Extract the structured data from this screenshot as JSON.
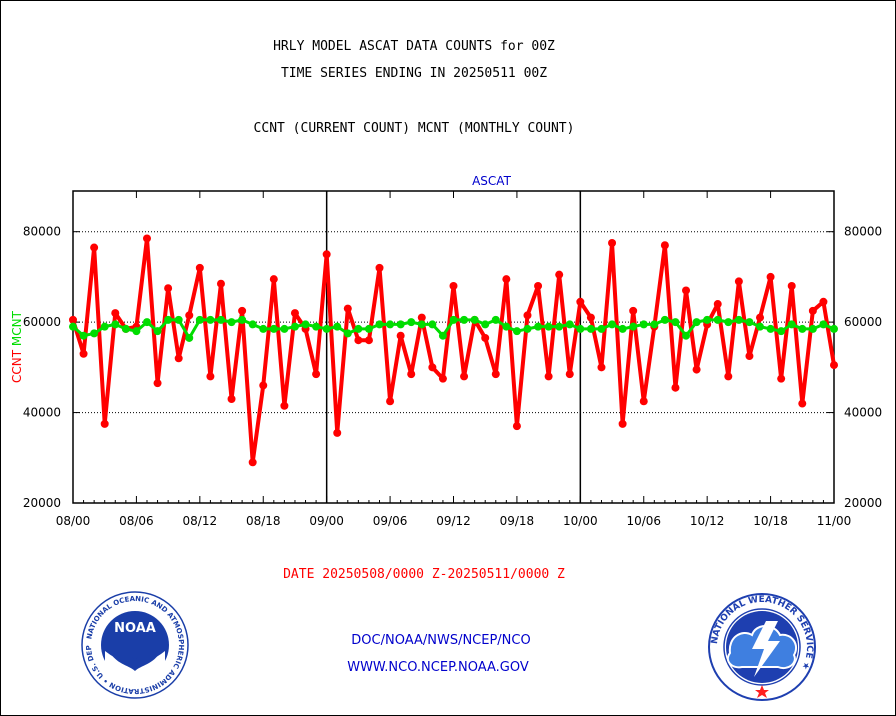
{
  "colors": {
    "ccnt": "#ff0000",
    "mcnt": "#00dd00",
    "subtitle_blue": "#0000cc",
    "credit_blue": "#0000cc",
    "date_red": "#ff0000",
    "noaa_blue": "#1a3ea8",
    "nws_blue": "#1e3fb0"
  },
  "header": {
    "title_line1": "HRLY MODEL ASCAT DATA COUNTS for 00Z",
    "title_line2": "TIME SERIES ENDING IN 20250511 00Z",
    "subtitle": "CCNT (CURRENT COUNT) MCNT (MONTHLY COUNT)"
  },
  "footer": {
    "date_range": "DATE 20250508/0000 Z-20250511/0000 Z",
    "credit_line1": "DOC/NOAA/NWS/NCEP/NCO",
    "credit_line2": "WWW.NCO.NCEP.NOAA.GOV"
  },
  "logos": {
    "noaa_label": "NOAA",
    "noaa_ring_text": "NATIONAL OCEANIC AND ATMOSPHERIC ADMINISTRATION",
    "noaa_bottom_text": "U.S. DEPARTMENT OF COMMERCE",
    "nws_ring_text": "NATIONAL WEATHER SERVICE"
  },
  "chart_data": {
    "type": "line",
    "title": "ASCAT",
    "ylabel_left_red": "CCNT",
    "ylabel_left_green": "MCNT",
    "x_tick_labels": [
      "08/00",
      "08/06",
      "08/12",
      "08/18",
      "09/00",
      "09/06",
      "09/12",
      "09/18",
      "10/00",
      "10/06",
      "10/12",
      "10/18",
      "11/00"
    ],
    "y_tick_labels": [
      "20000",
      "40000",
      "60000",
      "80000"
    ],
    "y_ticks": [
      20000,
      40000,
      60000,
      80000
    ],
    "ylim": [
      20000,
      89000
    ],
    "xlim": [
      0,
      72
    ],
    "day_dividers": [
      24,
      48
    ],
    "grid": "horizontal dotted at 40000, 60000, 80000",
    "series": [
      {
        "name": "CCNT",
        "values": [
          60500,
          53000,
          76500,
          37500,
          62000,
          58500,
          59000,
          78500,
          46500,
          67500,
          52000,
          61500,
          72000,
          48000,
          68500,
          43000,
          62500,
          29000,
          46000,
          69500,
          41500,
          62000,
          58500,
          48500,
          75000,
          35500,
          63000,
          56000,
          56000,
          72000,
          42500,
          57000,
          48500,
          61000,
          50000,
          47500,
          68000,
          48000,
          60500,
          56500,
          48500,
          69500,
          37000,
          61500,
          68000,
          48000,
          70500,
          48500,
          64500,
          61000,
          50000,
          77500,
          37500,
          62500,
          42500,
          59000,
          77000,
          45500,
          67000,
          49500,
          59500,
          64000,
          48000,
          69000,
          52500,
          61000,
          70000,
          47500,
          68000,
          42000,
          62500,
          64500,
          50500
        ]
      },
      {
        "name": "MCNT",
        "values": [
          59000,
          57000,
          57500,
          59000,
          59500,
          58500,
          58000,
          60000,
          58000,
          60500,
          60500,
          56500,
          60500,
          60500,
          60500,
          60000,
          60500,
          59500,
          58500,
          58500,
          58500,
          59000,
          59500,
          59000,
          58500,
          59000,
          57500,
          58500,
          58500,
          59500,
          59500,
          59500,
          60000,
          59500,
          59500,
          57000,
          60500,
          60500,
          60500,
          59500,
          60500,
          59000,
          58000,
          58500,
          59000,
          59000,
          59000,
          59500,
          58500,
          58500,
          58500,
          59500,
          58500,
          59000,
          59500,
          59500,
          60500,
          60000,
          57000,
          60000,
          60500,
          60500,
          60000,
          60500,
          60000,
          59000,
          58500,
          58000,
          59500,
          58500,
          58500,
          59500,
          58500
        ]
      }
    ]
  }
}
